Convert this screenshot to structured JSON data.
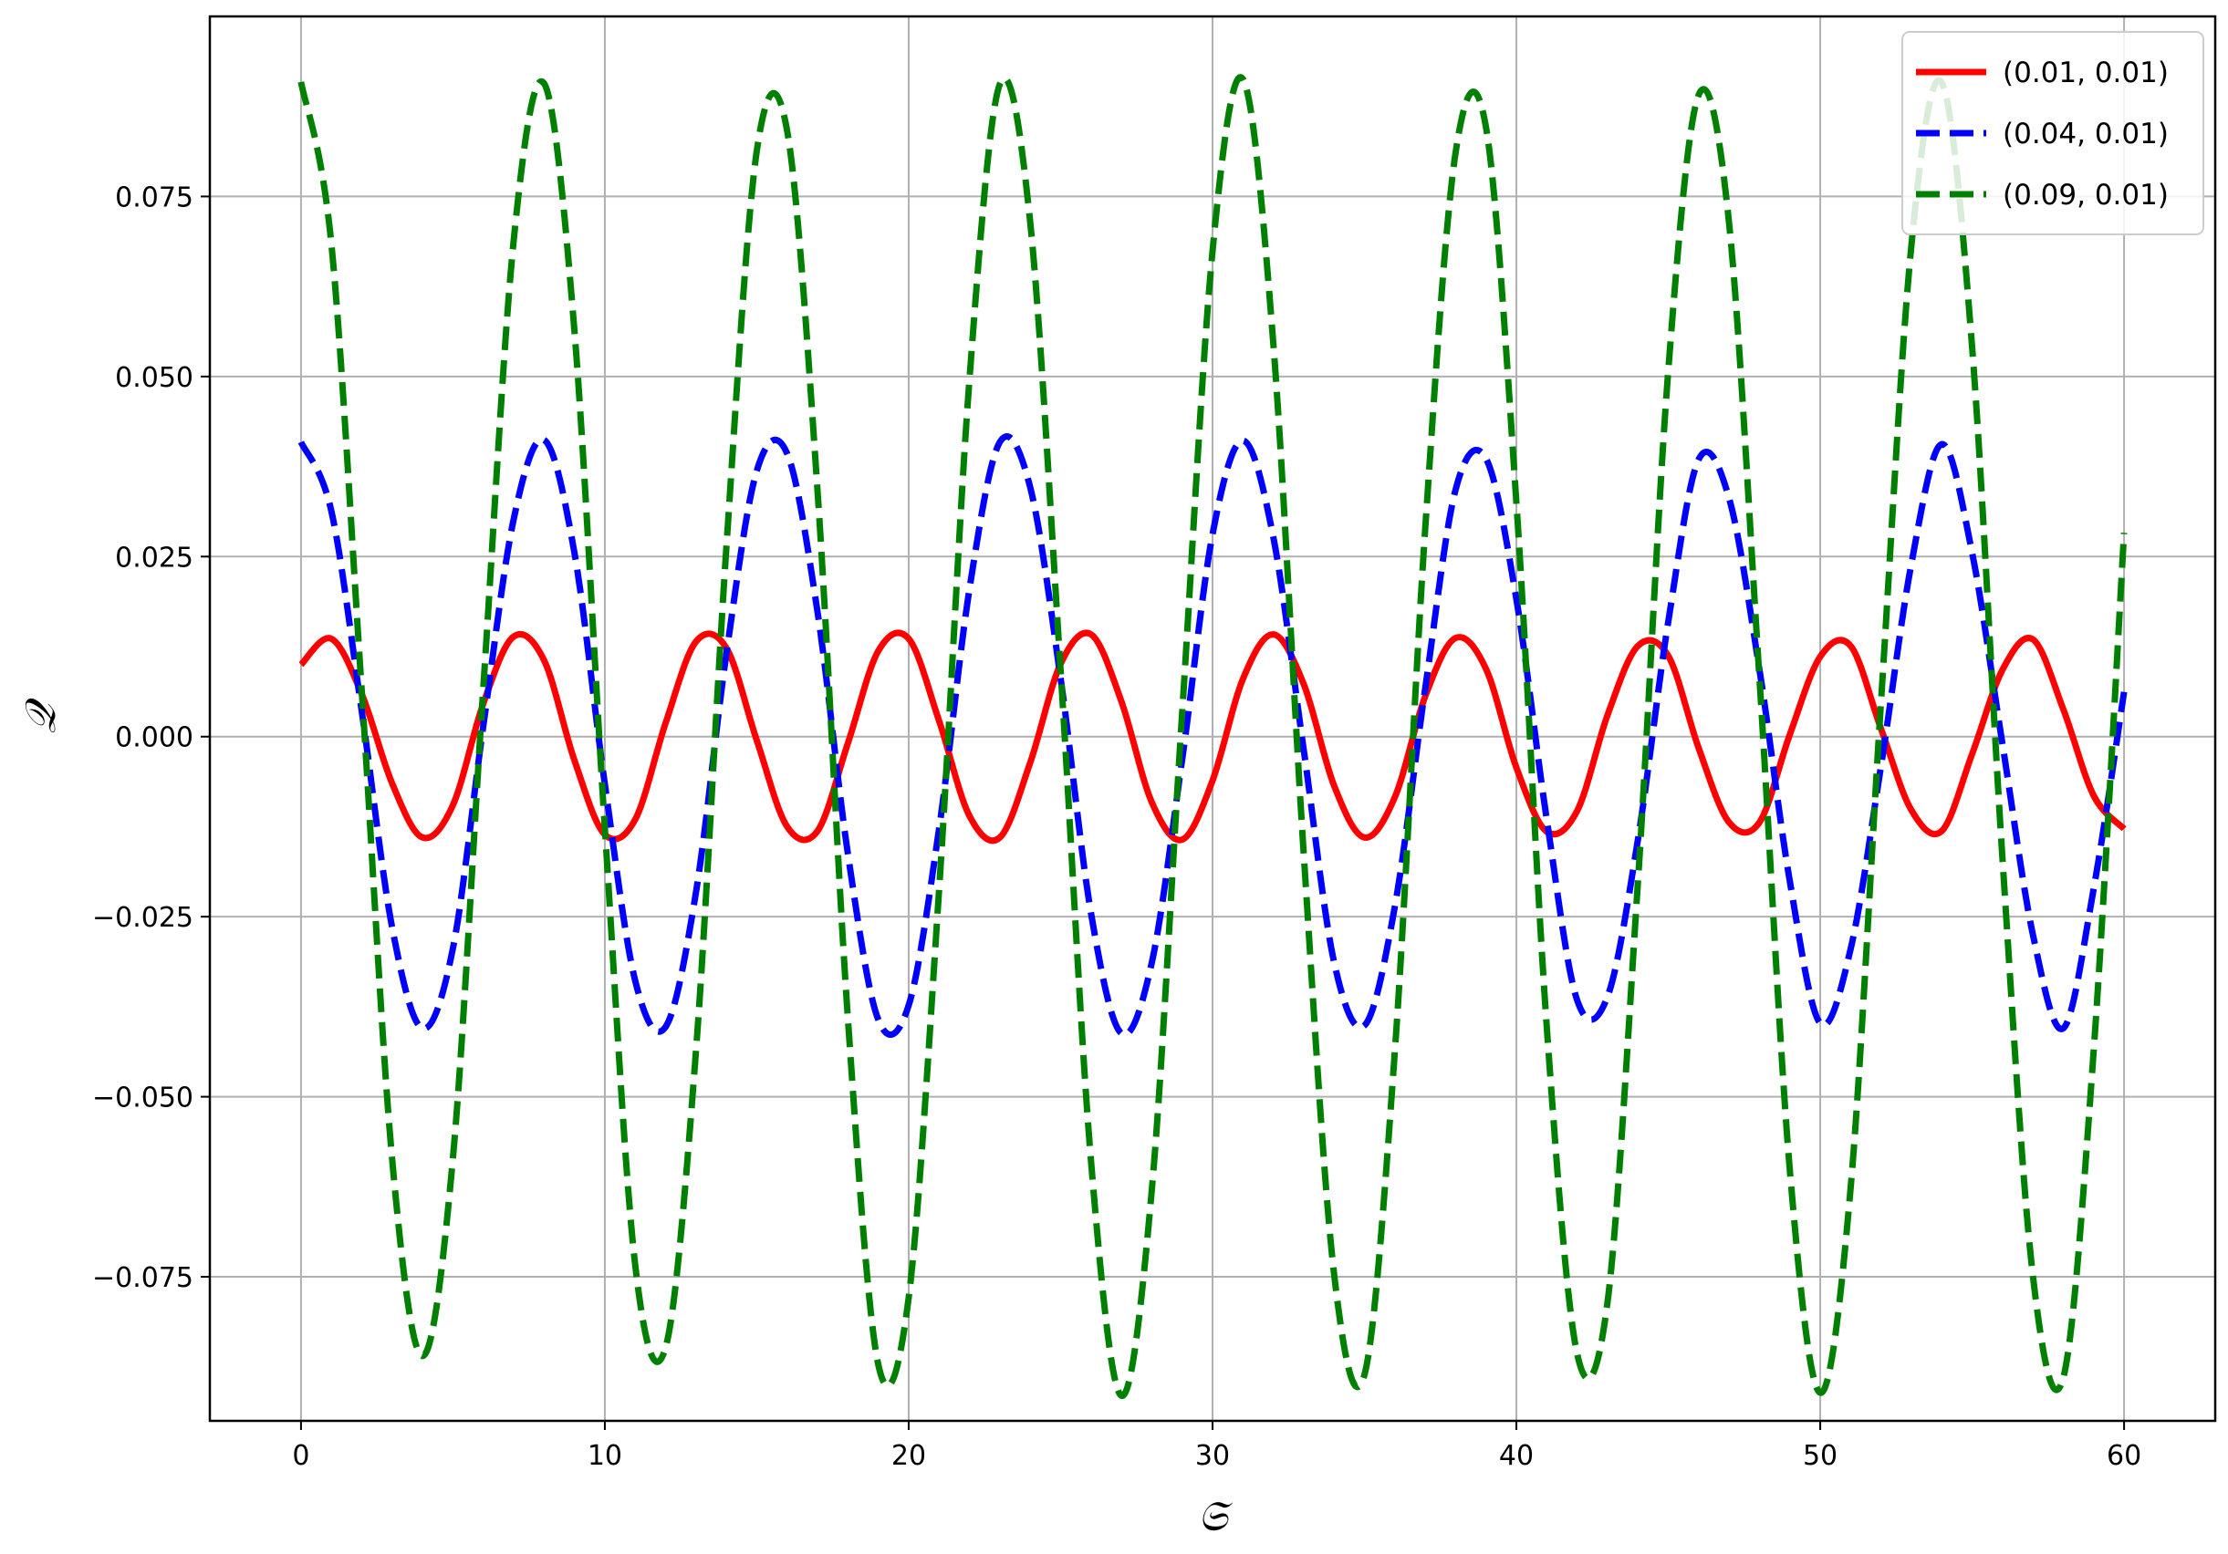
{
  "chart_data": {
    "type": "line",
    "title": "",
    "xlabel": "𝔖",
    "ylabel": "𝒬",
    "xlim": [
      -3,
      63
    ],
    "ylim": [
      -0.095,
      0.1
    ],
    "xticks": [
      0,
      10,
      20,
      30,
      40,
      50,
      60
    ],
    "xtick_labels": [
      "0",
      "10",
      "20",
      "30",
      "40",
      "50",
      "60"
    ],
    "yticks": [
      0.075,
      0.05,
      0.025,
      0.0,
      -0.025,
      -0.05,
      -0.075
    ],
    "ytick_labels": [
      "0.075",
      "0.050",
      "0.025",
      "0.000",
      "−0.025",
      "−0.050",
      "−0.075"
    ],
    "grid": true,
    "legend_position": "top-right",
    "x": [
      0,
      1,
      2,
      3,
      4,
      5,
      6,
      7,
      8,
      9,
      10,
      11,
      12,
      13,
      14,
      15,
      16,
      17,
      18,
      19,
      20,
      21,
      22,
      23,
      24,
      25,
      26,
      27,
      28,
      29,
      30,
      31,
      32,
      33,
      34,
      35,
      36,
      37,
      38,
      39,
      40,
      41,
      42,
      43,
      44,
      45,
      46,
      47,
      48,
      49,
      50,
      51,
      52,
      53,
      54,
      55,
      56,
      57,
      58,
      59,
      60
    ],
    "series": [
      {
        "name": "(0.01, 0.01)",
        "color": "#ff0000",
        "dash": "solid",
        "values": [
          0.01,
          0.0136,
          0.0059,
          -0.0065,
          -0.014,
          -0.0095,
          0.0046,
          0.0139,
          0.0106,
          -0.0033,
          -0.0136,
          -0.0115,
          0.0019,
          0.0132,
          0.0123,
          -0.0005,
          -0.0125,
          -0.0131,
          -0.0009,
          0.0119,
          0.0136,
          0.0022,
          -0.011,
          -0.014,
          -0.0036,
          0.0101,
          0.0142,
          0.0049,
          -0.0091,
          -0.0143,
          -0.0061,
          0.008,
          0.0142,
          0.0073,
          -0.0068,
          -0.014,
          -0.0084,
          0.0056,
          0.0137,
          0.0094,
          -0.0043,
          -0.0132,
          -0.0103,
          0.003,
          0.0126,
          0.0112,
          -0.0016,
          -0.0119,
          -0.0119,
          0.0003,
          0.0111,
          0.0126,
          0.0011,
          -0.0102,
          -0.0131,
          -0.0024,
          0.0093,
          0.0135,
          0.0038,
          -0.0082,
          -0.0128
        ]
      },
      {
        "name": "(0.04, 0.01)",
        "color": "#0000ff",
        "dash": "dashed",
        "values": [
          0.0409,
          0.0313,
          0.0035,
          -0.0265,
          -0.0405,
          -0.0294,
          0.0015,
          0.0302,
          0.0412,
          0.0255,
          -0.0066,
          -0.0339,
          -0.0403,
          -0.0216,
          0.0115,
          0.0369,
          0.0393,
          0.0173,
          -0.0163,
          -0.0393,
          -0.0373,
          -0.0128,
          0.0205,
          0.0409,
          0.0346,
          0.0081,
          -0.0245,
          -0.0412,
          -0.0314,
          -0.0032,
          0.0281,
          0.0411,
          0.0277,
          -0.0018,
          -0.0313,
          -0.0401,
          -0.0236,
          0.0067,
          0.0343,
          0.0386,
          0.0191,
          -0.0115,
          -0.0366,
          -0.0361,
          -0.0143,
          0.016,
          0.0385,
          0.0331,
          0.0093,
          -0.0201,
          -0.0398,
          -0.0295,
          -0.0041,
          0.024,
          0.0406,
          0.0255,
          -0.0011,
          -0.0275,
          -0.0405,
          -0.0211,
          0.0062
        ]
      },
      {
        "name": "(0.09, 0.01)",
        "color": "#008000",
        "dash": "dashed",
        "values": [
          0.0909,
          0.0684,
          0.0063,
          -0.0587,
          -0.086,
          -0.0585,
          0.0068,
          0.0689,
          0.0907,
          0.0563,
          -0.0127,
          -0.0734,
          -0.0848,
          -0.0436,
          0.0263,
          0.0813,
          0.0841,
          0.0341,
          -0.0392,
          -0.0872,
          -0.0779,
          -0.0213,
          0.0496,
          0.0906,
          0.0714,
          0.0092,
          -0.0589,
          -0.0915,
          -0.063,
          0.0033,
          0.0674,
          0.0913,
          0.0546,
          -0.0162,
          -0.0746,
          -0.0886,
          -0.0437,
          0.0289,
          0.0811,
          0.0846,
          0.0325,
          -0.0403,
          -0.0857,
          -0.0785,
          -0.0202,
          0.0509,
          0.0891,
          0.0713,
          0.0081,
          -0.0602,
          -0.0911,
          -0.0627,
          0.0048,
          0.0682,
          0.0908,
          0.054,
          -0.0171,
          -0.0749,
          -0.089,
          -0.0436,
          0.0283
        ]
      }
    ]
  }
}
